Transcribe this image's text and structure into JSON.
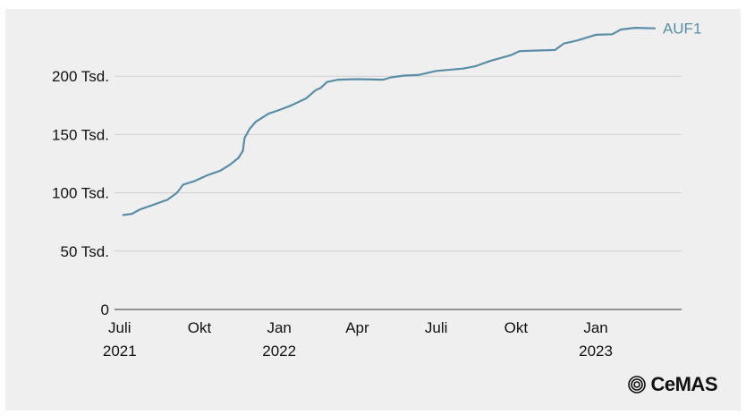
{
  "chart_data": {
    "type": "line",
    "title": "",
    "xlabel": "",
    "ylabel": "",
    "ylim": [
      0,
      250000
    ],
    "grid": true,
    "y_ticks": [
      {
        "value": 0,
        "label": "0"
      },
      {
        "value": 50000,
        "label": "50 Tsd."
      },
      {
        "value": 100000,
        "label": "100 Tsd."
      },
      {
        "value": 150000,
        "label": "150 Tsd."
      },
      {
        "value": 200000,
        "label": "200 Tsd."
      }
    ],
    "x_ticks": [
      {
        "date": "2021-07-01",
        "label": "Juli",
        "year": "2021"
      },
      {
        "date": "2021-10-01",
        "label": "Okt",
        "year": ""
      },
      {
        "date": "2022-01-01",
        "label": "Jan",
        "year": "2022"
      },
      {
        "date": "2022-04-01",
        "label": "Apr",
        "year": ""
      },
      {
        "date": "2022-07-01",
        "label": "Juli",
        "year": ""
      },
      {
        "date": "2022-10-01",
        "label": "Okt",
        "year": ""
      },
      {
        "date": "2023-01-01",
        "label": "Jan",
        "year": "2023"
      }
    ],
    "xlim": [
      "2021-06-25",
      "2023-04-10"
    ],
    "series": [
      {
        "name": "AUF1",
        "color": "#5b8ea6",
        "points": [
          [
            "2021-07-05",
            81000
          ],
          [
            "2021-07-15",
            82000
          ],
          [
            "2021-07-25",
            86000
          ],
          [
            "2021-08-10",
            90000
          ],
          [
            "2021-08-25",
            94000
          ],
          [
            "2021-09-05",
            100000
          ],
          [
            "2021-09-12",
            107000
          ],
          [
            "2021-09-25",
            110000
          ],
          [
            "2021-10-10",
            115000
          ],
          [
            "2021-10-25",
            119000
          ],
          [
            "2021-11-05",
            124000
          ],
          [
            "2021-11-15",
            130000
          ],
          [
            "2021-11-20",
            136000
          ],
          [
            "2021-11-22",
            147000
          ],
          [
            "2021-11-28",
            155000
          ],
          [
            "2021-12-05",
            161000
          ],
          [
            "2021-12-20",
            168000
          ],
          [
            "2022-01-01",
            171000
          ],
          [
            "2022-01-15",
            175000
          ],
          [
            "2022-02-01",
            181000
          ],
          [
            "2022-02-12",
            188000
          ],
          [
            "2022-02-18",
            190000
          ],
          [
            "2022-02-25",
            195000
          ],
          [
            "2022-03-10",
            197000
          ],
          [
            "2022-04-01",
            197500
          ],
          [
            "2022-05-01",
            197000
          ],
          [
            "2022-05-10",
            199000
          ],
          [
            "2022-05-25",
            200500
          ],
          [
            "2022-06-10",
            201000
          ],
          [
            "2022-07-01",
            204500
          ],
          [
            "2022-08-01",
            206500
          ],
          [
            "2022-08-15",
            208500
          ],
          [
            "2022-09-01",
            213000
          ],
          [
            "2022-09-25",
            218000
          ],
          [
            "2022-10-05",
            221500
          ],
          [
            "2022-10-25",
            222000
          ],
          [
            "2022-11-15",
            222500
          ],
          [
            "2022-11-25",
            228000
          ],
          [
            "2022-12-10",
            230500
          ],
          [
            "2023-01-01",
            235500
          ],
          [
            "2023-01-20",
            236000
          ],
          [
            "2023-01-30",
            240000
          ],
          [
            "2023-02-15",
            241500
          ],
          [
            "2023-03-10",
            241000
          ]
        ]
      }
    ]
  },
  "logo": {
    "text": "CeMAS",
    "icon": "cemas-logo-icon"
  }
}
